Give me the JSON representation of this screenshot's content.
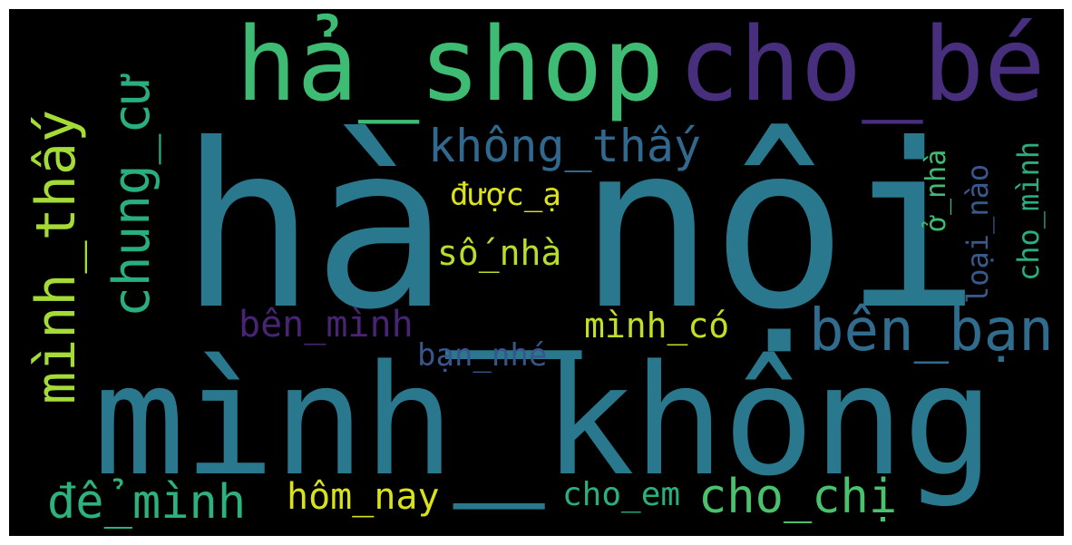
{
  "word_cloud": {
    "background": "#000000",
    "words": [
      {
        "text": "hà_nội",
        "color": "#2a788e"
      },
      {
        "text": "mình_không",
        "color": "#2a788e"
      },
      {
        "text": "hả_shop",
        "color": "#3fbc73"
      },
      {
        "text": "cho_bé",
        "color": "#472f7d"
      },
      {
        "text": "mình_thấy",
        "color": "#a5db36"
      },
      {
        "text": "chung_cư",
        "color": "#29af7f"
      },
      {
        "text": "không_thấy",
        "color": "#31688e"
      },
      {
        "text": "được_ạ",
        "color": "#dde318"
      },
      {
        "text": "số_nhà",
        "color": "#b8de29"
      },
      {
        "text": "ở_nhà",
        "color": "#3dbc74"
      },
      {
        "text": "loại_nào",
        "color": "#38598c"
      },
      {
        "text": "cho_mình",
        "color": "#29af7f"
      },
      {
        "text": "bên_bạn",
        "color": "#2f6c8e"
      },
      {
        "text": "bên_mình",
        "color": "#482475"
      },
      {
        "text": "mình_có",
        "color": "#c0df25"
      },
      {
        "text": "bạn_nhé",
        "color": "#39568c"
      },
      {
        "text": "để_mình",
        "color": "#2db27d"
      },
      {
        "text": "hôm_nay",
        "color": "#d8e219"
      },
      {
        "text": "cho_em",
        "color": "#2ab07f"
      },
      {
        "text": "cho_chị",
        "color": "#4ac16d"
      }
    ]
  }
}
